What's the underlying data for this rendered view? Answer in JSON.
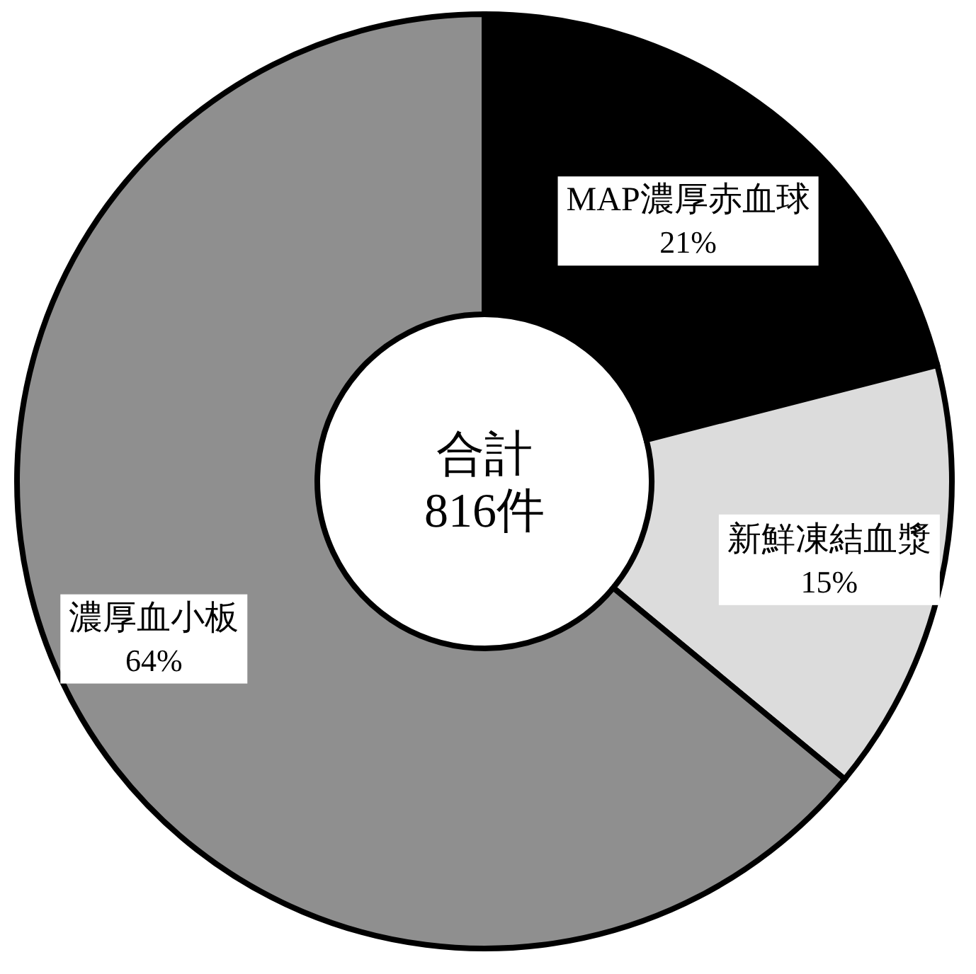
{
  "chart_data": {
    "type": "donut",
    "categories": [
      "MAP濃厚赤血球",
      "新鮮凍結血漿",
      "濃厚血小板"
    ],
    "values": [
      21,
      15,
      64
    ],
    "value_labels": [
      "21%",
      "15%",
      "64%"
    ],
    "colors": [
      "#000000",
      "#dcdcdc",
      "#8f8f8f"
    ],
    "annotations": [
      "合計",
      "816件"
    ]
  }
}
